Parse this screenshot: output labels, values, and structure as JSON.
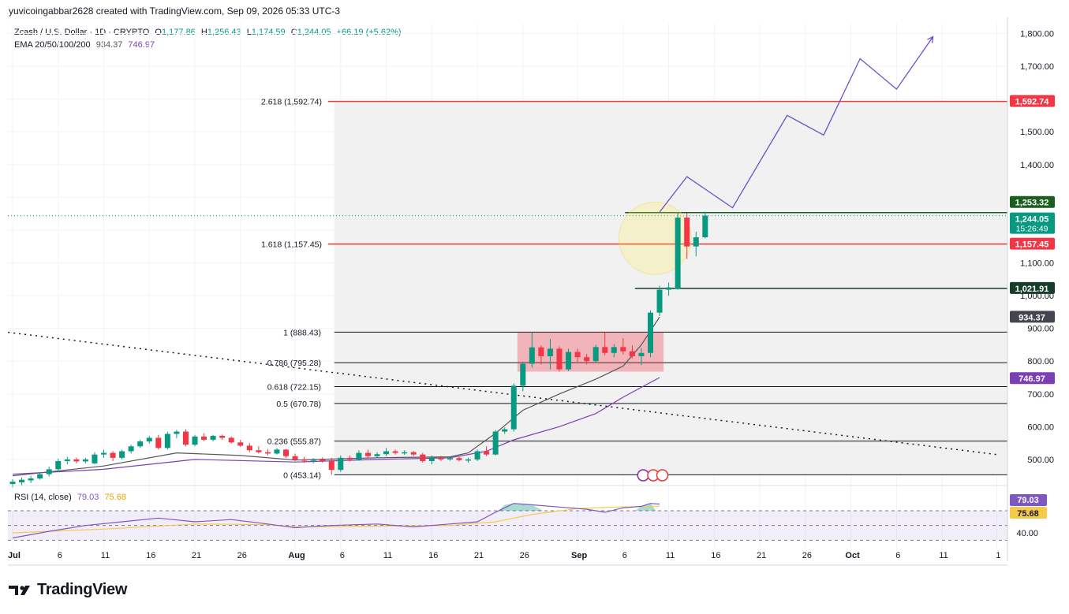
{
  "header": {
    "attribution": "yuvicoingabbar2628 created with TradingView.com, Sep 09, 2026 05:33 UTC-3",
    "symbol": "Zcash / U.S. Dollar · 1D · CRYPTO",
    "o_label": "O",
    "o_value": "1,177.86",
    "h_label": "H",
    "h_value": "1,256.43",
    "l_label": "L",
    "l_value": "1,174.59",
    "c_label": "C",
    "c_value": "1,244.05",
    "change": "+66.19 (+5.62%)",
    "ema_label": "EMA 20/50/100/200",
    "ema_v1": "934.37",
    "ema_v2": "746.97",
    "rsi_label": "RSI (14, close)",
    "rsi_v1": "79.03",
    "rsi_v2": "75.68"
  },
  "footer": {
    "brand": "TradingView"
  },
  "colors": {
    "up": "#089981",
    "down": "#f23645",
    "ema_fast": "#555555",
    "ema_slow": "#7b3fb2",
    "fib": "#131722",
    "fib_key": "#e53935",
    "projection": "#6e4fc9",
    "rsi": "#7e57c2",
    "rsi_ma": "#f7c948"
  },
  "chart_data": {
    "type": "candlestick",
    "title": "Zcash / U.S. Dollar · 1D · CRYPTO",
    "y_axis": {
      "range": [
        430,
        1830
      ],
      "ticks": [
        "500.00",
        "600.00",
        "700.00",
        "800.00",
        "900.00",
        "1,000.00",
        "1,100.00",
        "1,200.00",
        "1,300.00",
        "1,400.00",
        "1,500.00",
        "1,600.00",
        "1,700.00",
        "1,800.00"
      ],
      "tick_values": [
        500,
        600,
        700,
        800,
        900,
        1000,
        1100,
        1200,
        1300,
        1400,
        1500,
        1600,
        1700,
        1800
      ]
    },
    "x_axis": {
      "ticks": [
        {
          "label": "Jul",
          "day": 0
        },
        {
          "label": "6",
          "day": 5
        },
        {
          "label": "11",
          "day": 10
        },
        {
          "label": "16",
          "day": 15
        },
        {
          "label": "21",
          "day": 20
        },
        {
          "label": "26",
          "day": 25
        },
        {
          "label": "Aug",
          "day": 31
        },
        {
          "label": "6",
          "day": 36
        },
        {
          "label": "11",
          "day": 41
        },
        {
          "label": "16",
          "day": 46
        },
        {
          "label": "21",
          "day": 51
        },
        {
          "label": "26",
          "day": 56
        },
        {
          "label": "Sep",
          "day": 62
        },
        {
          "label": "6",
          "day": 67
        },
        {
          "label": "11",
          "day": 72
        },
        {
          "label": "16",
          "day": 77
        },
        {
          "label": "21",
          "day": 82
        },
        {
          "label": "26",
          "day": 87
        },
        {
          "label": "Oct",
          "day": 92
        },
        {
          "label": "6",
          "day": 97
        },
        {
          "label": "11",
          "day": 102
        },
        {
          "label": "1",
          "day": 108
        }
      ]
    },
    "candles": [
      {
        "o": 425,
        "h": 440,
        "l": 415,
        "c": 432
      },
      {
        "o": 430,
        "h": 445,
        "l": 420,
        "c": 438
      },
      {
        "o": 436,
        "h": 450,
        "l": 428,
        "c": 442
      },
      {
        "o": 442,
        "h": 460,
        "l": 438,
        "c": 455
      },
      {
        "o": 455,
        "h": 478,
        "l": 448,
        "c": 470
      },
      {
        "o": 470,
        "h": 502,
        "l": 462,
        "c": 495
      },
      {
        "o": 495,
        "h": 508,
        "l": 485,
        "c": 500
      },
      {
        "o": 500,
        "h": 505,
        "l": 488,
        "c": 494
      },
      {
        "o": 494,
        "h": 505,
        "l": 488,
        "c": 500
      },
      {
        "o": 488,
        "h": 522,
        "l": 485,
        "c": 515
      },
      {
        "o": 515,
        "h": 530,
        "l": 505,
        "c": 520
      },
      {
        "o": 520,
        "h": 525,
        "l": 495,
        "c": 505
      },
      {
        "o": 505,
        "h": 530,
        "l": 500,
        "c": 525
      },
      {
        "o": 525,
        "h": 545,
        "l": 518,
        "c": 540
      },
      {
        "o": 540,
        "h": 560,
        "l": 535,
        "c": 555
      },
      {
        "o": 555,
        "h": 572,
        "l": 548,
        "c": 566
      },
      {
        "o": 566,
        "h": 575,
        "l": 530,
        "c": 535
      },
      {
        "o": 535,
        "h": 585,
        "l": 530,
        "c": 578
      },
      {
        "o": 578,
        "h": 590,
        "l": 565,
        "c": 585
      },
      {
        "o": 585,
        "h": 592,
        "l": 540,
        "c": 545
      },
      {
        "o": 545,
        "h": 575,
        "l": 540,
        "c": 570
      },
      {
        "o": 570,
        "h": 580,
        "l": 556,
        "c": 560
      },
      {
        "o": 560,
        "h": 575,
        "l": 555,
        "c": 572
      },
      {
        "o": 572,
        "h": 576,
        "l": 560,
        "c": 566
      },
      {
        "o": 566,
        "h": 570,
        "l": 548,
        "c": 552
      },
      {
        "o": 552,
        "h": 560,
        "l": 538,
        "c": 542
      },
      {
        "o": 542,
        "h": 550,
        "l": 522,
        "c": 528
      },
      {
        "o": 528,
        "h": 540,
        "l": 518,
        "c": 522
      },
      {
        "o": 522,
        "h": 532,
        "l": 512,
        "c": 518
      },
      {
        "o": 518,
        "h": 535,
        "l": 515,
        "c": 530
      },
      {
        "o": 530,
        "h": 532,
        "l": 505,
        "c": 510
      },
      {
        "o": 510,
        "h": 518,
        "l": 495,
        "c": 500
      },
      {
        "o": 500,
        "h": 508,
        "l": 490,
        "c": 496
      },
      {
        "o": 496,
        "h": 504,
        "l": 488,
        "c": 500
      },
      {
        "o": 500,
        "h": 506,
        "l": 490,
        "c": 495
      },
      {
        "o": 495,
        "h": 505,
        "l": 453,
        "c": 468
      },
      {
        "o": 468,
        "h": 512,
        "l": 462,
        "c": 505
      },
      {
        "o": 505,
        "h": 512,
        "l": 494,
        "c": 500
      },
      {
        "o": 500,
        "h": 528,
        "l": 496,
        "c": 520
      },
      {
        "o": 520,
        "h": 530,
        "l": 505,
        "c": 510
      },
      {
        "o": 510,
        "h": 522,
        "l": 505,
        "c": 516
      },
      {
        "o": 516,
        "h": 535,
        "l": 510,
        "c": 525
      },
      {
        "o": 525,
        "h": 530,
        "l": 515,
        "c": 520
      },
      {
        "o": 520,
        "h": 528,
        "l": 514,
        "c": 522
      },
      {
        "o": 522,
        "h": 526,
        "l": 510,
        "c": 515
      },
      {
        "o": 515,
        "h": 520,
        "l": 490,
        "c": 495
      },
      {
        "o": 495,
        "h": 512,
        "l": 485,
        "c": 505
      },
      {
        "o": 505,
        "h": 510,
        "l": 495,
        "c": 500
      },
      {
        "o": 500,
        "h": 508,
        "l": 496,
        "c": 504
      },
      {
        "o": 504,
        "h": 508,
        "l": 494,
        "c": 498
      },
      {
        "o": 498,
        "h": 505,
        "l": 490,
        "c": 500
      },
      {
        "o": 500,
        "h": 530,
        "l": 495,
        "c": 525
      },
      {
        "o": 525,
        "h": 540,
        "l": 510,
        "c": 515
      },
      {
        "o": 515,
        "h": 590,
        "l": 512,
        "c": 585
      },
      {
        "o": 585,
        "h": 598,
        "l": 578,
        "c": 592
      },
      {
        "o": 592,
        "h": 732,
        "l": 585,
        "c": 725
      },
      {
        "o": 725,
        "h": 798,
        "l": 708,
        "c": 792
      },
      {
        "o": 792,
        "h": 888,
        "l": 780,
        "c": 842
      },
      {
        "o": 842,
        "h": 848,
        "l": 790,
        "c": 815
      },
      {
        "o": 815,
        "h": 868,
        "l": 775,
        "c": 838
      },
      {
        "o": 838,
        "h": 845,
        "l": 768,
        "c": 775
      },
      {
        "o": 775,
        "h": 838,
        "l": 770,
        "c": 828
      },
      {
        "o": 828,
        "h": 838,
        "l": 798,
        "c": 812
      },
      {
        "o": 812,
        "h": 822,
        "l": 790,
        "c": 800
      },
      {
        "o": 800,
        "h": 850,
        "l": 795,
        "c": 843
      },
      {
        "o": 843,
        "h": 888,
        "l": 818,
        "c": 825
      },
      {
        "o": 825,
        "h": 852,
        "l": 812,
        "c": 843
      },
      {
        "o": 843,
        "h": 870,
        "l": 820,
        "c": 830
      },
      {
        "o": 830,
        "h": 848,
        "l": 808,
        "c": 815
      },
      {
        "o": 815,
        "h": 840,
        "l": 788,
        "c": 825
      },
      {
        "o": 825,
        "h": 955,
        "l": 812,
        "c": 948
      },
      {
        "o": 948,
        "h": 1030,
        "l": 938,
        "c": 1018
      },
      {
        "o": 1018,
        "h": 1040,
        "l": 1000,
        "c": 1025
      },
      {
        "o": 1021,
        "h": 1253,
        "l": 1018,
        "c": 1238
      },
      {
        "o": 1238,
        "h": 1252,
        "l": 1112,
        "c": 1150
      },
      {
        "o": 1150,
        "h": 1195,
        "l": 1120,
        "c": 1178
      },
      {
        "o": 1178,
        "h": 1256,
        "l": 1175,
        "c": 1244
      }
    ],
    "ema_fast_name": "EMA 20/50/100/200 · 934.37",
    "ema_fast": [
      [
        0,
        450
      ],
      [
        10,
        480
      ],
      [
        18,
        520
      ],
      [
        25,
        512
      ],
      [
        31,
        498
      ],
      [
        40,
        505
      ],
      [
        48,
        508
      ],
      [
        50,
        520
      ],
      [
        53,
        580
      ],
      [
        56,
        650
      ],
      [
        60,
        700
      ],
      [
        64,
        745
      ],
      [
        67,
        785
      ],
      [
        69,
        850
      ],
      [
        71,
        935
      ]
    ],
    "ema_slow_name": "746.97",
    "ema_slow": [
      [
        0,
        455
      ],
      [
        10,
        470
      ],
      [
        20,
        500
      ],
      [
        31,
        492
      ],
      [
        40,
        500
      ],
      [
        48,
        505
      ],
      [
        52,
        525
      ],
      [
        55,
        560
      ],
      [
        60,
        600
      ],
      [
        64,
        640
      ],
      [
        67,
        690
      ],
      [
        69,
        720
      ],
      [
        71,
        750
      ]
    ],
    "fib_levels": [
      {
        "ratio": "0",
        "value": 453.14,
        "label": "0 (453.14)"
      },
      {
        "ratio": "0.236",
        "value": 555.87,
        "label": "0.236 (555.87)"
      },
      {
        "ratio": "0.5",
        "value": 670.78,
        "label": "0.5 (670.78)"
      },
      {
        "ratio": "0.618",
        "value": 722.15,
        "label": "0.618 (722.15)"
      },
      {
        "ratio": "0.786",
        "value": 795.28,
        "label": "0.786 (795.28)"
      },
      {
        "ratio": "1",
        "value": 888.43,
        "label": "1 (888.43)"
      },
      {
        "ratio": "1.618",
        "value": 1157.45,
        "label": "1.618 (1,157.45)"
      },
      {
        "ratio": "2.618",
        "value": 1592.74,
        "label": "2.618 (1,592.74)"
      }
    ],
    "horizontal_levels": [
      {
        "value": 1253.32,
        "label": "1,253.32"
      },
      {
        "value": 1021.91,
        "label": "1,021.91"
      }
    ],
    "price_labels": [
      {
        "value": 1592.74,
        "label": "1,592.74",
        "kind": "red"
      },
      {
        "value": 1253.32,
        "label": "1,253.32",
        "kind": "green"
      },
      {
        "value": 1244.05,
        "label": "1,244.05",
        "sub": "15:26:49",
        "kind": "teal"
      },
      {
        "value": 1157.45,
        "label": "1,157.45",
        "kind": "red"
      },
      {
        "value": 1021.91,
        "label": "1,021.91",
        "kind": "darkgreen"
      },
      {
        "value": 934.37,
        "label": "934.37",
        "kind": "gray"
      },
      {
        "value": 746.97,
        "label": "746.97",
        "kind": "purple"
      }
    ],
    "trendline": [
      [
        -0.5,
        888
      ],
      [
        108,
        515
      ]
    ],
    "consolidation_box": {
      "x0": 56,
      "x1": 71,
      "y0": 768,
      "y1": 888
    },
    "highlight_circle": {
      "day": 70.5,
      "value": 1175
    },
    "projection": [
      [
        71,
        1255
      ],
      [
        74,
        1363
      ],
      [
        79,
        1268
      ],
      [
        85,
        1550
      ],
      [
        89,
        1490
      ],
      [
        93,
        1723
      ],
      [
        97,
        1630
      ],
      [
        101,
        1790
      ]
    ],
    "rsi_panel": {
      "range": [
        25,
        100
      ],
      "guide_levels": [
        30,
        50,
        70
      ],
      "ticks": [
        {
          "label": "40.00",
          "value": 40
        }
      ],
      "rsi": [
        [
          0,
          33
        ],
        [
          4,
          42
        ],
        [
          8,
          50
        ],
        [
          12,
          55
        ],
        [
          16,
          60
        ],
        [
          20,
          55
        ],
        [
          24,
          58
        ],
        [
          28,
          52
        ],
        [
          31,
          47
        ],
        [
          35,
          50
        ],
        [
          40,
          52
        ],
        [
          44,
          48
        ],
        [
          48,
          52
        ],
        [
          51,
          55
        ],
        [
          53,
          68
        ],
        [
          55,
          80
        ],
        [
          57,
          78
        ],
        [
          60,
          75
        ],
        [
          63,
          72
        ],
        [
          65,
          68
        ],
        [
          67,
          74
        ],
        [
          69,
          76
        ],
        [
          70,
          80
        ],
        [
          71,
          79
        ]
      ],
      "rsi_ma": [
        [
          0,
          40
        ],
        [
          10,
          45
        ],
        [
          20,
          52
        ],
        [
          28,
          51
        ],
        [
          31,
          48
        ],
        [
          40,
          49
        ],
        [
          48,
          50
        ],
        [
          53,
          55
        ],
        [
          57,
          65
        ],
        [
          62,
          73
        ],
        [
          66,
          75
        ],
        [
          71,
          76
        ]
      ]
    }
  }
}
